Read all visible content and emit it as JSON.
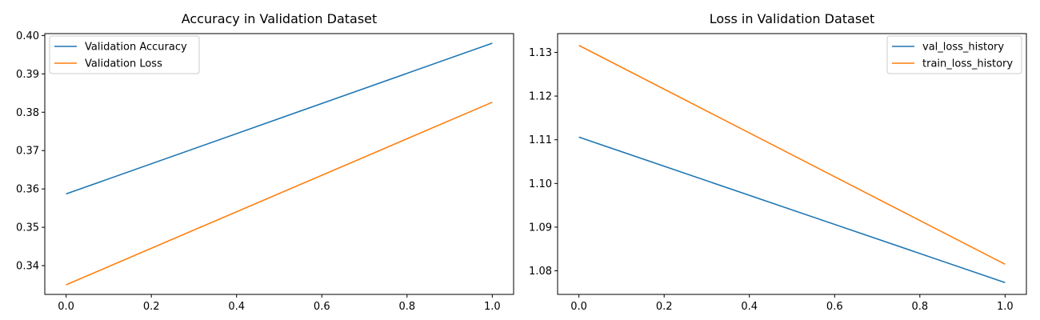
{
  "chart_data": [
    {
      "type": "line",
      "title": "Accuracy in Validation Dataset",
      "xlabel": "",
      "ylabel": "",
      "xlim": [
        -0.05,
        1.05
      ],
      "ylim": [
        0.3325,
        0.4005
      ],
      "xticks": [
        0.0,
        0.2,
        0.4,
        0.6,
        0.8,
        1.0
      ],
      "yticks": [
        0.34,
        0.35,
        0.36,
        0.37,
        0.38,
        0.39,
        0.4
      ],
      "xtick_labels": [
        "0.0",
        "0.2",
        "0.4",
        "0.6",
        "0.8",
        "1.0"
      ],
      "ytick_labels": [
        "0.34",
        "0.35",
        "0.36",
        "0.37",
        "0.38",
        "0.39",
        "0.40"
      ],
      "legend": "top-left",
      "grid": false,
      "series": [
        {
          "name": "Validation Accuracy",
          "color": "#1f77b4",
          "x": [
            0,
            1
          ],
          "y": [
            0.3587,
            0.398
          ]
        },
        {
          "name": "Validation Loss",
          "color": "#ff7f0e",
          "x": [
            0,
            1
          ],
          "y": [
            0.335,
            0.3826
          ]
        }
      ]
    },
    {
      "type": "line",
      "title": "Loss in Validation Dataset",
      "xlabel": "",
      "ylabel": "",
      "xlim": [
        -0.05,
        1.05
      ],
      "ylim": [
        1.0746,
        1.1343
      ],
      "xticks": [
        0.0,
        0.2,
        0.4,
        0.6,
        0.8,
        1.0
      ],
      "yticks": [
        1.08,
        1.09,
        1.1,
        1.11,
        1.12,
        1.13
      ],
      "xtick_labels": [
        "0.0",
        "0.2",
        "0.4",
        "0.6",
        "0.8",
        "1.0"
      ],
      "ytick_labels": [
        "1.08",
        "1.09",
        "1.10",
        "1.11",
        "1.12",
        "1.13"
      ],
      "legend": "top-right",
      "grid": false,
      "series": [
        {
          "name": "val_loss_history",
          "color": "#1f77b4",
          "x": [
            0,
            1
          ],
          "y": [
            1.1106,
            1.0773
          ]
        },
        {
          "name": "train_loss_history",
          "color": "#ff7f0e",
          "x": [
            0,
            1
          ],
          "y": [
            1.1316,
            1.0815
          ]
        }
      ]
    }
  ]
}
